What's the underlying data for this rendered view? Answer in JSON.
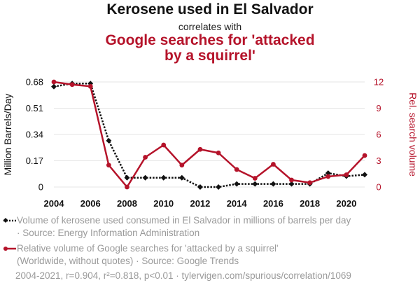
{
  "header": {
    "title": "Kerosene used in El Salvador",
    "connector": "correlates with",
    "title2_line1": "Google searches for 'attacked",
    "title2_line2": "by a squirrel'"
  },
  "chart_data": {
    "type": "line",
    "x": [
      2004,
      2005,
      2006,
      2007,
      2008,
      2009,
      2010,
      2011,
      2012,
      2013,
      2014,
      2015,
      2016,
      2017,
      2018,
      2019,
      2020,
      2021
    ],
    "series": [
      {
        "name": "Volume of kerosene used consumed in El Salvador in millions of barrels per day",
        "axis": "left",
        "color": "#111111",
        "values": [
          0.65,
          0.67,
          0.67,
          0.3,
          0.06,
          0.06,
          0.06,
          0.06,
          0.0,
          0.0,
          0.02,
          0.02,
          0.02,
          0.02,
          0.02,
          0.09,
          0.07,
          0.08
        ]
      },
      {
        "name": "Relative volume of Google searches for 'attacked by a squirrel'",
        "axis": "right",
        "color": "#b5132a",
        "values": [
          12,
          11.7,
          11.5,
          2.5,
          0,
          3.4,
          4.8,
          2.5,
          4.3,
          3.9,
          2.0,
          1.0,
          2.6,
          0.8,
          0.5,
          1.2,
          1.4,
          3.6
        ]
      }
    ],
    "ylabel_left": "Million Barrels/Day",
    "ylabel_right": "Rel. search volume",
    "ylim_left": [
      0,
      0.68
    ],
    "ylim_right": [
      0,
      12
    ],
    "xticks": [
      "2004",
      "2006",
      "2008",
      "2010",
      "2012",
      "2014",
      "2016",
      "2018",
      "2020"
    ],
    "yticks_left": [
      "0",
      "0.17",
      "0.34",
      "0.51",
      "0.68"
    ],
    "yticks_right": [
      "0",
      "3",
      "6",
      "9",
      "12"
    ],
    "left_color": "#111111",
    "right_color": "#b5132a",
    "grid": true
  },
  "legend": {
    "series1_line1": "Volume of kerosene used consumed in El Salvador in millions of barrels per day",
    "series1_line2": "· Source: Energy Information Administration",
    "series2_line1": "Relative volume of Google searches for 'attacked by a squirrel'",
    "series2_line2": "(Worldwide, without quotes) · Source: Google Trends"
  },
  "footer": {
    "text": "2004-2021, r=0.904, r²=0.818, p<0.01 · tylervigen.com/spurious/correlation/1069"
  }
}
